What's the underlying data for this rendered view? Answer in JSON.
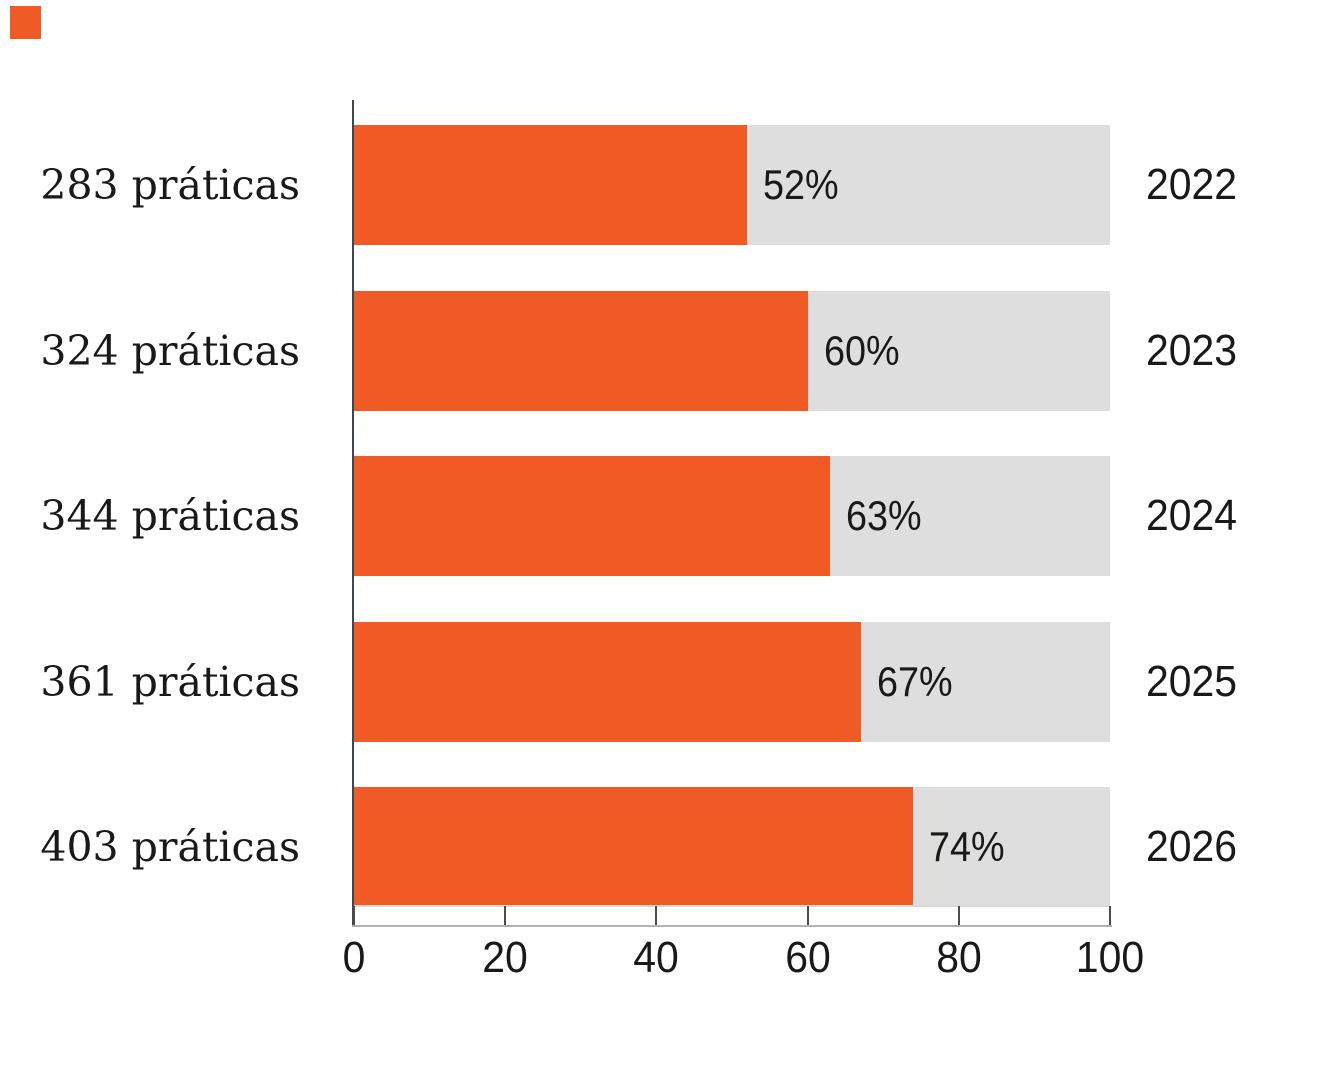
{
  "chart_data": {
    "type": "bar",
    "orientation": "horizontal",
    "title": "",
    "xlabel": "",
    "ylabel": "",
    "xlim": [
      0,
      100
    ],
    "x_ticks": [
      0,
      20,
      40,
      60,
      80,
      100
    ],
    "grid": false,
    "legend_position": "top-left-color-chip",
    "categories": [
      "2022",
      "2023",
      "2024",
      "2025",
      "2026"
    ],
    "values": [
      52,
      60,
      63,
      67,
      74
    ],
    "rows": [
      {
        "left_label": "283 práticas",
        "value": 52,
        "pct_label": "52%",
        "year": "2022"
      },
      {
        "left_label": "324 práticas",
        "value": 60,
        "pct_label": "60%",
        "year": "2023"
      },
      {
        "left_label": "344 práticas",
        "value": 63,
        "pct_label": "63%",
        "year": "2024"
      },
      {
        "left_label": "361 práticas",
        "value": 67,
        "pct_label": "67%",
        "year": "2025"
      },
      {
        "left_label": "403 práticas",
        "value": 74,
        "pct_label": "74%",
        "year": "2026"
      }
    ],
    "colors": {
      "fill": "#ef5a25",
      "track": "#dedede",
      "text": "#191919",
      "axis_line": "#3f4650",
      "tick": "#4d4d4d",
      "baseline": "#b0b0b0",
      "topline": "#d8d8d8"
    }
  }
}
